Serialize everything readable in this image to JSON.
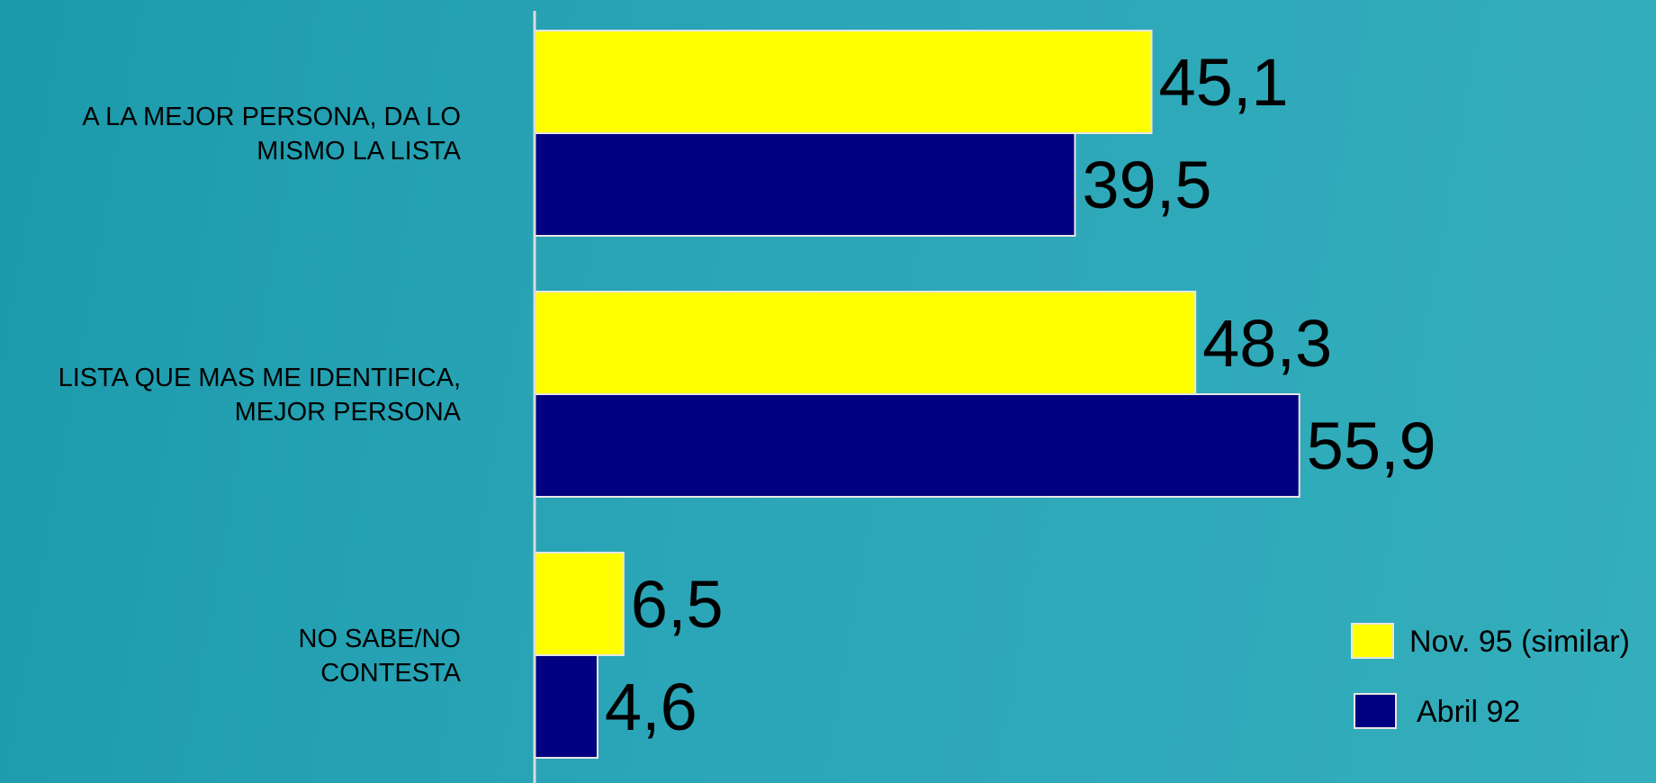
{
  "chart_data": {
    "type": "bar",
    "orientation": "horizontal",
    "categories": [
      [
        "A LA MEJOR PERSONA, DA LO",
        "MISMO LA LISTA"
      ],
      [
        "LISTA QUE MAS ME IDENTIFICA,",
        "MEJOR PERSONA"
      ],
      [
        "NO SABE/NO",
        "CONTESTA"
      ]
    ],
    "series": [
      {
        "name": "Nov. 95 (similar)",
        "color": "#ffff00",
        "values": [
          45.1,
          48.3,
          6.5
        ],
        "labels": [
          "45,1",
          "48,3",
          "6,5"
        ]
      },
      {
        "name": "Abril 92",
        "color": "#000080",
        "values": [
          39.5,
          55.9,
          4.6
        ],
        "labels": [
          "39,5",
          "55,9",
          "4,6"
        ]
      }
    ],
    "xlim": [
      0,
      60
    ],
    "title": "",
    "xlabel": "",
    "ylabel": "",
    "grid": false,
    "legend_position": "bottom-right"
  }
}
